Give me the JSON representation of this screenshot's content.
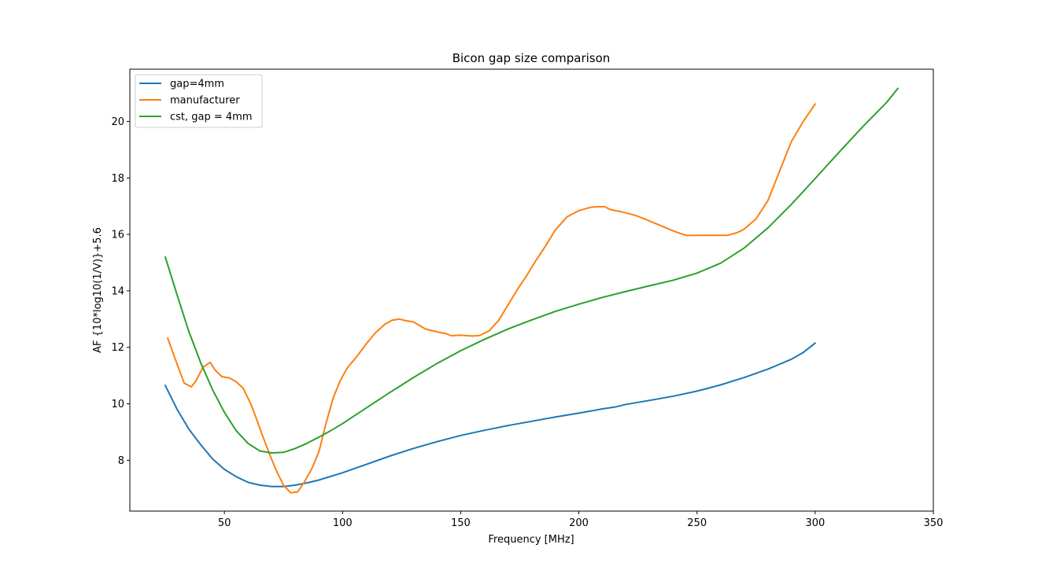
{
  "chart_data": {
    "type": "line",
    "title": "Bicon gap size comparison",
    "xlabel": "Frequency [MHz]",
    "ylabel": "AF {10*log10(1/V)}+5.6",
    "xlim": [
      10,
      350
    ],
    "ylim": [
      6.2,
      21.85
    ],
    "xticks": [
      50,
      100,
      150,
      200,
      250,
      300,
      350
    ],
    "xtick_labels": [
      "50",
      "100",
      "150",
      "200",
      "250",
      "300",
      "350"
    ],
    "yticks": [
      8,
      10,
      12,
      14,
      16,
      18,
      20
    ],
    "ytick_labels": [
      "8",
      "10",
      "12",
      "14",
      "16",
      "18",
      "20"
    ],
    "grid": false,
    "legend_position": "upper-left",
    "series": [
      {
        "name": "gap=4mm",
        "color": "#1f77b4",
        "x": [
          25,
          30,
          35,
          40,
          45,
          50,
          55,
          60,
          65,
          70,
          75,
          80,
          85,
          90,
          100,
          110,
          120,
          130,
          140,
          150,
          160,
          170,
          180,
          190,
          200,
          210,
          215,
          220,
          230,
          240,
          250,
          260,
          270,
          280,
          290,
          295,
          300
        ],
        "y": [
          10.65,
          9.8,
          9.1,
          8.55,
          8.05,
          7.68,
          7.42,
          7.22,
          7.12,
          7.07,
          7.07,
          7.12,
          7.2,
          7.3,
          7.56,
          7.85,
          8.15,
          8.42,
          8.66,
          8.88,
          9.06,
          9.23,
          9.38,
          9.53,
          9.67,
          9.82,
          9.88,
          9.98,
          10.12,
          10.27,
          10.45,
          10.67,
          10.93,
          11.23,
          11.58,
          11.82,
          12.15
        ]
      },
      {
        "name": "manufacturer",
        "color": "#ff7f0e",
        "x": [
          26,
          30,
          33,
          36,
          38,
          41,
          44,
          46,
          49,
          52,
          55,
          58,
          61,
          63,
          66,
          69,
          72,
          75,
          78,
          81,
          84,
          87,
          90,
          93,
          96,
          99,
          102,
          106,
          110,
          114,
          118,
          121,
          124,
          127,
          130,
          135,
          140,
          144,
          146,
          150,
          155,
          158,
          162,
          166,
          170,
          174,
          178,
          182,
          186,
          190,
          195,
          200,
          205,
          208,
          211,
          213,
          215,
          218,
          220,
          224,
          228,
          232,
          236,
          240,
          244,
          246,
          252,
          258,
          263,
          267,
          270,
          275,
          280,
          285,
          290,
          295,
          300
        ],
        "y": [
          12.33,
          11.4,
          10.73,
          10.6,
          10.82,
          11.3,
          11.47,
          11.2,
          10.96,
          10.92,
          10.78,
          10.55,
          10.03,
          9.6,
          8.9,
          8.24,
          7.63,
          7.12,
          6.85,
          6.88,
          7.25,
          7.7,
          8.3,
          9.3,
          10.2,
          10.82,
          11.27,
          11.67,
          12.12,
          12.52,
          12.82,
          12.96,
          13.0,
          12.94,
          12.9,
          12.65,
          12.55,
          12.48,
          12.41,
          12.43,
          12.4,
          12.42,
          12.58,
          12.95,
          13.5,
          14.05,
          14.55,
          15.1,
          15.6,
          16.15,
          16.62,
          16.84,
          16.96,
          16.98,
          16.98,
          16.89,
          16.85,
          16.8,
          16.76,
          16.67,
          16.54,
          16.4,
          16.26,
          16.12,
          16.0,
          15.96,
          15.97,
          15.97,
          15.97,
          16.06,
          16.19,
          16.55,
          17.2,
          18.25,
          19.3,
          20.0,
          20.62
        ]
      },
      {
        "name": "cst, gap = 4mm",
        "color": "#2ca02c",
        "x": [
          25,
          30,
          35,
          40,
          45,
          50,
          55,
          60,
          65,
          70,
          75,
          80,
          85,
          90,
          95,
          100,
          110,
          120,
          130,
          140,
          150,
          160,
          170,
          180,
          190,
          200,
          210,
          220,
          230,
          240,
          250,
          260,
          270,
          280,
          290,
          300,
          310,
          320,
          330,
          335
        ],
        "y": [
          15.2,
          13.85,
          12.55,
          11.45,
          10.5,
          9.7,
          9.05,
          8.6,
          8.33,
          8.26,
          8.28,
          8.42,
          8.6,
          8.82,
          9.05,
          9.3,
          9.85,
          10.4,
          10.93,
          11.43,
          11.88,
          12.28,
          12.65,
          12.97,
          13.27,
          13.53,
          13.77,
          13.98,
          14.18,
          14.38,
          14.63,
          14.98,
          15.52,
          16.23,
          17.07,
          17.98,
          18.9,
          19.8,
          20.65,
          21.17
        ]
      }
    ]
  }
}
